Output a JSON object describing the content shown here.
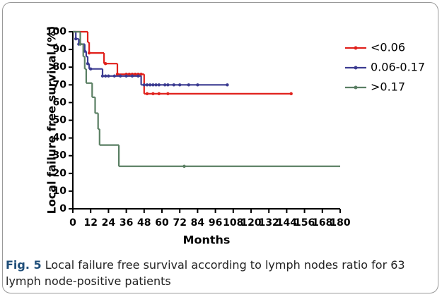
{
  "chart_data": {
    "type": "step",
    "xlabel": "Months",
    "ylabel": "Local failure free survival (%)",
    "xlim": [
      0,
      180
    ],
    "ylim": [
      0,
      100
    ],
    "xticks": [
      0,
      12,
      24,
      36,
      48,
      60,
      72,
      84,
      96,
      108,
      120,
      132,
      144,
      156,
      168,
      180
    ],
    "yticks": [
      0,
      10,
      20,
      30,
      40,
      50,
      60,
      70,
      80,
      90,
      100
    ],
    "legend": "upper right",
    "series": [
      {
        "name": "<0.06",
        "color": "#e0201b",
        "x": [
          0,
          10,
          11,
          21,
          30,
          48,
          147
        ],
        "values": [
          100,
          94,
          88,
          82,
          76,
          65,
          65
        ],
        "censored": [
          11,
          22,
          30,
          36,
          38,
          40,
          42,
          44,
          46,
          50,
          54,
          58,
          64,
          147
        ]
      },
      {
        "name": "0.06-0.17",
        "color": "#3b3b91",
        "x": [
          0,
          2,
          4,
          8,
          9,
          10,
          11,
          20,
          46,
          105
        ],
        "values": [
          100,
          96,
          93,
          89,
          86,
          82,
          79,
          75,
          70,
          70
        ],
        "censored": [
          2,
          4,
          8,
          10,
          12,
          20,
          22,
          24,
          28,
          32,
          36,
          40,
          44,
          48,
          50,
          52,
          54,
          56,
          58,
          62,
          64,
          68,
          72,
          78,
          84,
          104
        ]
      },
      {
        "name": ">0.17",
        "color": "#5a7f63",
        "x": [
          0,
          5,
          7,
          8,
          9,
          13,
          15,
          17,
          18,
          31,
          180
        ],
        "values": [
          100,
          93,
          86,
          79,
          71,
          63,
          54,
          45,
          36,
          24,
          24
        ],
        "censored": [
          5,
          75
        ]
      }
    ]
  },
  "caption": {
    "label": "Fig. 5",
    "text": "Local failure free survival according to lymph nodes ratio for 63 lymph node-positive patients"
  }
}
